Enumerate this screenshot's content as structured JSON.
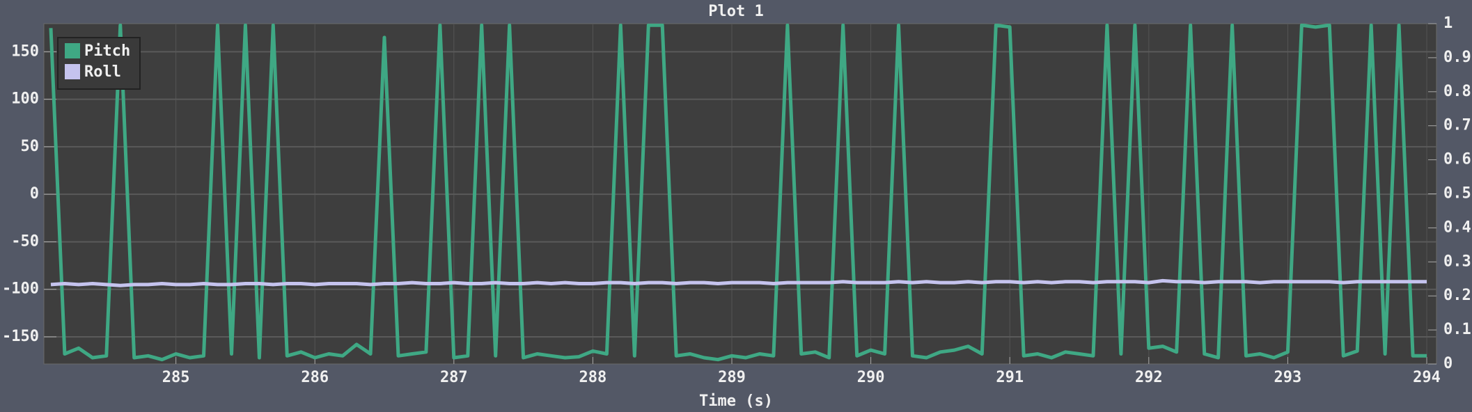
{
  "chart_data": {
    "type": "line",
    "title": "Plot 1",
    "x_label": "Time (s)",
    "x": [
      284.1,
      284.2,
      284.3,
      284.4,
      284.5,
      284.6,
      284.7,
      284.8,
      284.9,
      285.0,
      285.1,
      285.2,
      285.3,
      285.4,
      285.5,
      285.6,
      285.7,
      285.8,
      285.9,
      286.0,
      286.1,
      286.2,
      286.3,
      286.4,
      286.5,
      286.6,
      286.7,
      286.8,
      286.9,
      287.0,
      287.1,
      287.2,
      287.3,
      287.4,
      287.5,
      287.6,
      287.7,
      287.8,
      287.9,
      288.0,
      288.1,
      288.2,
      288.3,
      288.4,
      288.5,
      288.6,
      288.7,
      288.8,
      288.9,
      289.0,
      289.1,
      289.2,
      289.3,
      289.4,
      289.5,
      289.6,
      289.7,
      289.8,
      289.9,
      290.0,
      290.1,
      290.2,
      290.3,
      290.4,
      290.5,
      290.6,
      290.7,
      290.8,
      290.9,
      291.0,
      291.1,
      291.2,
      291.3,
      291.4,
      291.5,
      291.6,
      291.7,
      291.8,
      291.9,
      292.0,
      292.1,
      292.2,
      292.3,
      292.4,
      292.5,
      292.6,
      292.7,
      292.8,
      292.9,
      293.0,
      293.1,
      293.2,
      293.3,
      293.4,
      293.5,
      293.6,
      293.7,
      293.8,
      293.9,
      294.0
    ],
    "series": [
      {
        "name": "Pitch",
        "color": "#3fa884",
        "values": [
          175,
          -168,
          -162,
          -172,
          -170,
          178,
          -172,
          -170,
          -174,
          -168,
          -172,
          -170,
          178,
          -168,
          178,
          -172,
          178,
          -170,
          -166,
          -172,
          -168,
          -170,
          -158,
          -168,
          165,
          -170,
          -168,
          -166,
          178,
          -172,
          -170,
          178,
          -170,
          178,
          -172,
          -168,
          -170,
          -172,
          -171,
          -165,
          -168,
          178,
          -170,
          178,
          178,
          -170,
          -168,
          -172,
          -174,
          -170,
          -172,
          -168,
          -170,
          178,
          -168,
          -166,
          -172,
          178,
          -170,
          -164,
          -168,
          178,
          -170,
          -172,
          -166,
          -164,
          -160,
          -168,
          178,
          176,
          -170,
          -168,
          -172,
          -166,
          -168,
          -170,
          178,
          -168,
          178,
          -162,
          -160,
          -166,
          178,
          -168,
          -172,
          178,
          -170,
          -168,
          -172,
          -166,
          178,
          176,
          178,
          -170,
          -165,
          178,
          -168,
          178,
          -170,
          -170
        ]
      },
      {
        "name": "Roll",
        "color": "#c5c3ee",
        "values": [
          -95,
          -94,
          -95,
          -94,
          -95,
          -96,
          -95,
          -95,
          -94,
          -95,
          -95,
          -94,
          -95,
          -95,
          -94,
          -94,
          -95,
          -94,
          -94,
          -95,
          -94,
          -94,
          -94,
          -95,
          -94,
          -94,
          -93,
          -94,
          -94,
          -93,
          -94,
          -94,
          -93,
          -94,
          -94,
          -93,
          -94,
          -93,
          -94,
          -94,
          -93,
          -93,
          -94,
          -93,
          -93,
          -94,
          -93,
          -93,
          -94,
          -93,
          -93,
          -93,
          -94,
          -93,
          -93,
          -93,
          -93,
          -92,
          -93,
          -93,
          -93,
          -92,
          -93,
          -92,
          -93,
          -93,
          -92,
          -93,
          -92,
          -92,
          -93,
          -92,
          -93,
          -92,
          -92,
          -93,
          -92,
          -92,
          -92,
          -93,
          -91,
          -92,
          -92,
          -93,
          -92,
          -92,
          -92,
          -93,
          -92,
          -92,
          -92,
          -92,
          -92,
          -93,
          -92,
          -92,
          -92,
          -92,
          -92,
          -92
        ]
      }
    ],
    "xlim": [
      284.05,
      294.07
    ],
    "xticks": [
      285,
      286,
      287,
      288,
      289,
      290,
      291,
      292,
      293,
      294
    ],
    "ylim": [
      -178.6,
      179.6
    ],
    "yticks": [
      -150,
      -100,
      -50,
      0,
      50,
      100,
      150
    ],
    "y2lim": [
      0,
      1
    ],
    "y2ticks": [
      0,
      0.1,
      0.2,
      0.3,
      0.4,
      0.5,
      0.6,
      0.7,
      0.8,
      0.9,
      1
    ],
    "grid": true,
    "legend": "top-left"
  }
}
